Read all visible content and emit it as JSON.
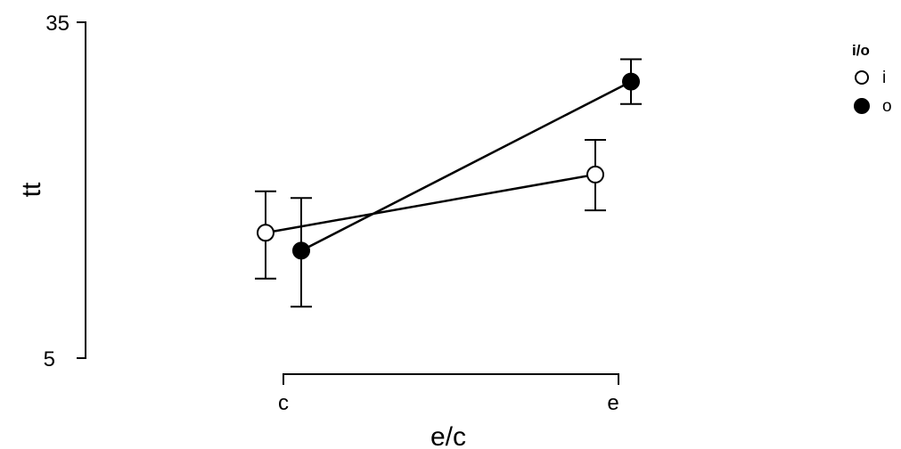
{
  "chart_data": {
    "type": "line",
    "xlabel": "e/c",
    "ylabel": "tt",
    "categories": [
      "c",
      "e"
    ],
    "ylim": [
      5,
      35
    ],
    "yticks": [
      5,
      35
    ],
    "grid": false,
    "legend": {
      "title": "i/o",
      "placement": "top-right"
    },
    "series": [
      {
        "name": "i",
        "marker": "open-circle",
        "color": "#000000",
        "values": [
          16.2,
          21.4
        ],
        "error_low": [
          12.1,
          18.2
        ],
        "error_high": [
          19.9,
          24.5
        ]
      },
      {
        "name": "o",
        "marker": "filled-circle",
        "color": "#000000",
        "values": [
          14.6,
          29.7
        ],
        "error_low": [
          9.6,
          27.7
        ],
        "error_high": [
          19.3,
          31.7
        ]
      }
    ]
  }
}
